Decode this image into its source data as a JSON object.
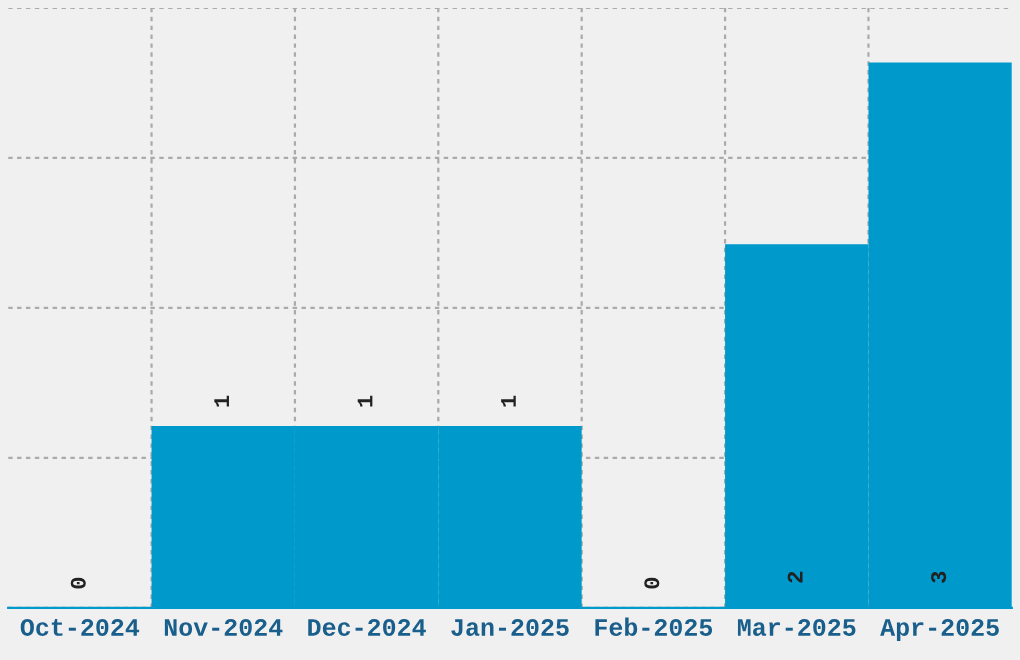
{
  "chart_data": {
    "type": "bar",
    "categories": [
      "Oct-2024",
      "Nov-2024",
      "Dec-2024",
      "Jan-2025",
      "Feb-2025",
      "Mar-2025",
      "Apr-2025"
    ],
    "values": [
      0,
      1,
      1,
      1,
      0,
      2,
      3
    ],
    "color": "#0099cc",
    "ylim": [
      0,
      3.3
    ],
    "yticks": [
      {
        "value": 0,
        "label": null
      },
      {
        "value": 0.825,
        "label": null
      },
      {
        "value": 1.65,
        "label": null
      },
      {
        "value": 2.475,
        "label": null
      },
      {
        "value": 3.3,
        "label": null
      }
    ],
    "grid": true,
    "tick_labels": "x",
    "data_labels": true
  }
}
